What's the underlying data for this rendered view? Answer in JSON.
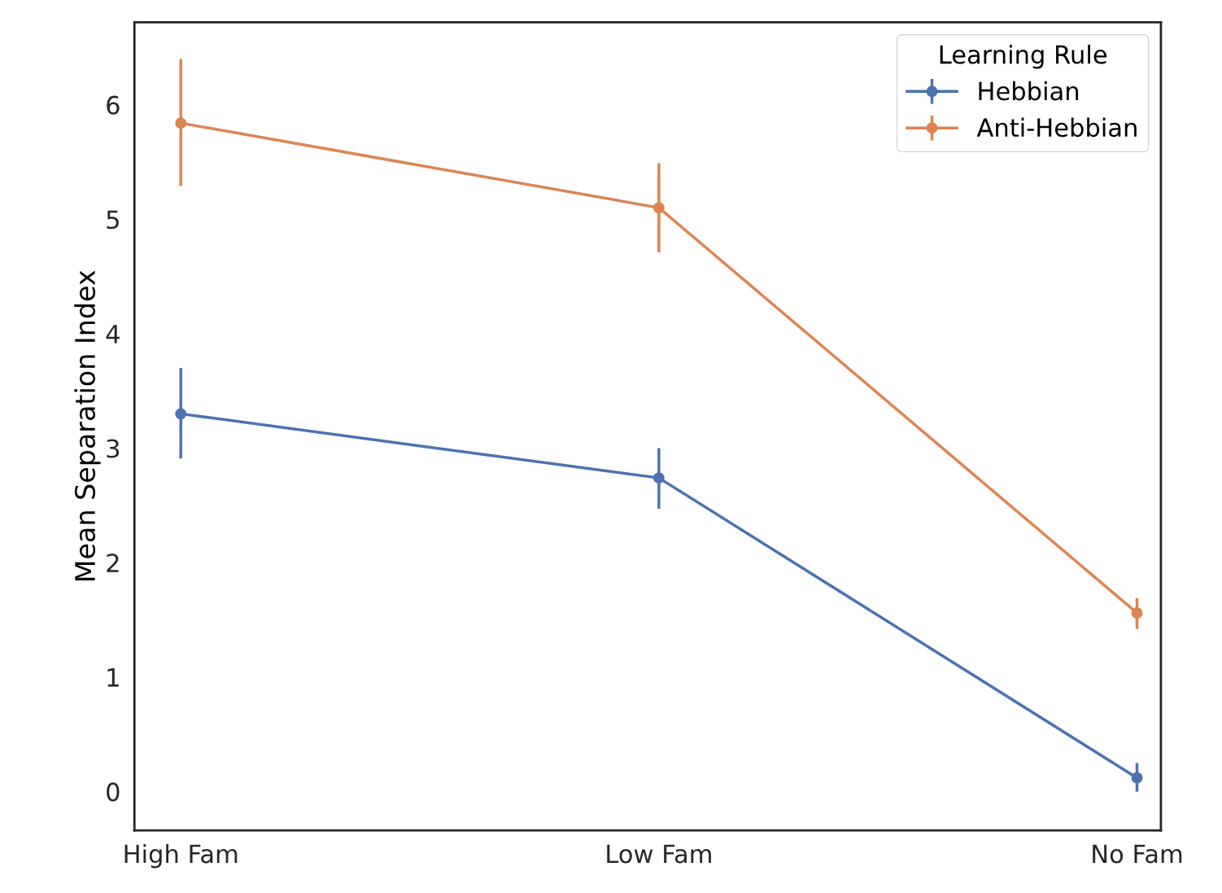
{
  "chart_data": {
    "type": "line",
    "ylabel": "Mean Separation Index",
    "legend_title": "Learning Rule",
    "categories": [
      "High Fam",
      "Low Fam",
      "No Fam"
    ],
    "series": [
      {
        "name": "Hebbian",
        "color": "#4c72b0",
        "values": [
          3.3,
          2.74,
          0.12
        ],
        "errors": [
          [
            2.91,
            3.7
          ],
          [
            2.47,
            3.0
          ],
          [
            0.0,
            0.25
          ]
        ]
      },
      {
        "name": "Anti-Hebbian",
        "color": "#dd8452",
        "values": [
          5.84,
          5.1,
          1.56
        ],
        "errors": [
          [
            5.29,
            6.4
          ],
          [
            4.71,
            5.49
          ],
          [
            1.42,
            1.69
          ]
        ]
      }
    ],
    "ylim": [
      -0.34,
      6.72
    ],
    "yticks": [
      0,
      1,
      2,
      3,
      4,
      5,
      6
    ],
    "grid": false,
    "legend": "top right",
    "marker": "circle",
    "line_style": "solid"
  }
}
